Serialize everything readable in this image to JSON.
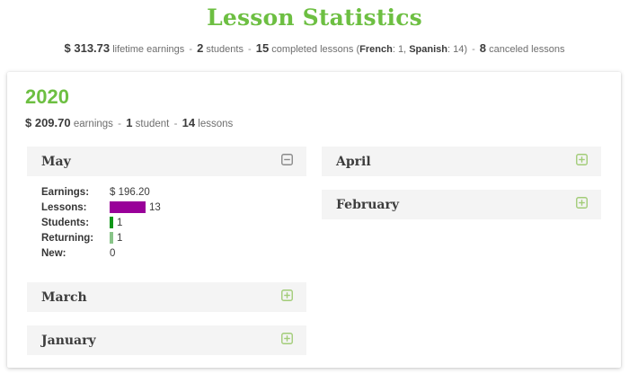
{
  "page": {
    "title": "Lesson Statistics",
    "accent_color": "#6dbf42"
  },
  "summary": {
    "earnings_value": "$ 313.73",
    "earnings_label": "lifetime earnings",
    "sep": "-",
    "students_value": "2",
    "students_label": "students",
    "lessons_value": "15",
    "lessons_label": "completed lessons",
    "detail_open": "(",
    "french_label": "French",
    "french_rest": ": 1,",
    "spanish_label": "Spanish",
    "spanish_rest": ": 14)",
    "canceled_value": "8",
    "canceled_label": "canceled lessons"
  },
  "year": {
    "label": "2020",
    "earnings_value": "$ 209.70",
    "earnings_label": "earnings",
    "sep": "-",
    "students_value": "1",
    "students_label": "student",
    "lessons_value": "14",
    "lessons_label": "lessons"
  },
  "months": {
    "may": {
      "label": "May",
      "state": "expanded",
      "stats": {
        "earnings_label": "Earnings:",
        "earnings_value": "$ 196.20",
        "lessons_label": "Lessons:",
        "lessons_value": "13",
        "lessons_count": 13,
        "students_label": "Students:",
        "students_value": "1",
        "students_count": 1,
        "returning_label": "Returning:",
        "returning_value": "1",
        "returning_count": 1,
        "new_label": "New:",
        "new_value": "0"
      }
    },
    "april": {
      "label": "April",
      "state": "collapsed"
    },
    "february": {
      "label": "February",
      "state": "collapsed"
    },
    "march": {
      "label": "March",
      "state": "collapsed"
    },
    "january": {
      "label": "January",
      "state": "collapsed"
    }
  },
  "chart_colors": {
    "lessons_bar": "#990099",
    "students_bar": "#109618",
    "returning_bar": "#88c488"
  },
  "icons": {
    "collapse_color": "#8a8a8a",
    "expand_color": "#a2cc78"
  }
}
